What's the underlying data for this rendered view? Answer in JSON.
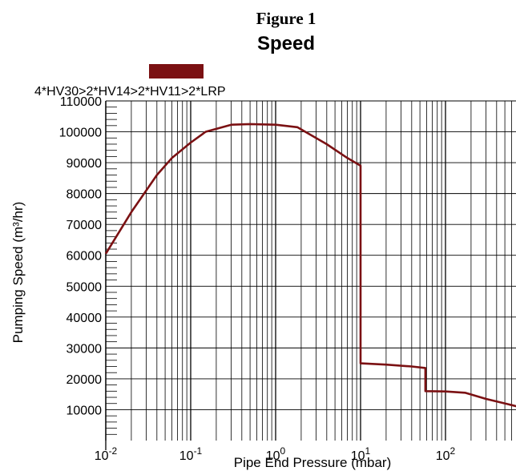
{
  "figure_label": "Figure 1",
  "chart_data": {
    "type": "line",
    "title": "Speed",
    "xlabel": "Pipe End Pressure (mbar)",
    "ylabel": "Pumping Speed (m³/hr)",
    "xscale": "log",
    "xlim": [
      0.01,
      1000
    ],
    "ylim": [
      0,
      110000
    ],
    "grid": true,
    "legend_position": "top-left",
    "x_tick_labels": [
      {
        "base": "10",
        "exp": "-2",
        "value": 0.01
      },
      {
        "base": "10",
        "exp": "-1",
        "value": 0.1
      },
      {
        "base": "10",
        "exp": "0",
        "value": 1
      },
      {
        "base": "10",
        "exp": "1",
        "value": 10
      },
      {
        "base": "10",
        "exp": "2",
        "value": 100
      }
    ],
    "y_tick_labels": [
      "10000",
      "20000",
      "30000",
      "40000",
      "50000",
      "60000",
      "70000",
      "80000",
      "90000",
      "100000",
      "110000"
    ],
    "series": [
      {
        "name": "4*HV30>2*HV14>2*HV11>2*LRP",
        "color": "#7b1113",
        "x": [
          0.01,
          0.02,
          0.04,
          0.06,
          0.1,
          0.15,
          0.3,
          0.5,
          1,
          1.8,
          4,
          7,
          10,
          10,
          20,
          40,
          58,
          58,
          100,
          170,
          300,
          600,
          1000
        ],
        "y": [
          60500,
          74000,
          86000,
          91500,
          96500,
          100000,
          102300,
          102500,
          102300,
          101500,
          96000,
          91500,
          89000,
          25000,
          24600,
          24000,
          23500,
          16000,
          15900,
          15500,
          13500,
          11500,
          10000
        ]
      }
    ]
  }
}
